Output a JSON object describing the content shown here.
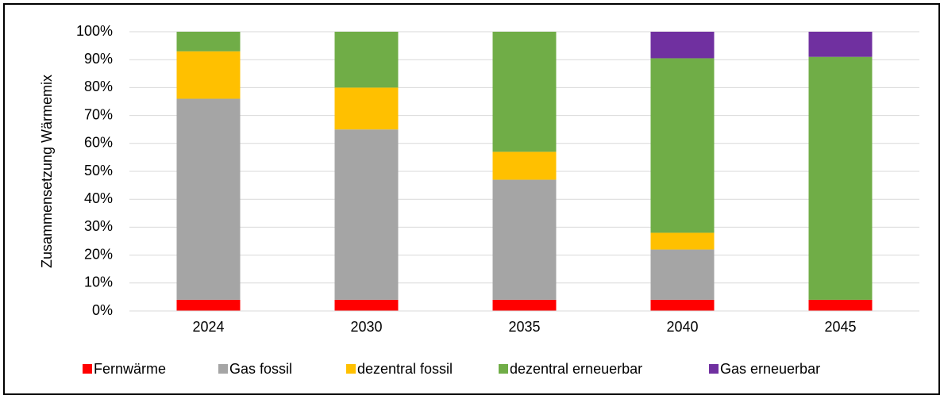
{
  "chart_data": {
    "type": "stacked_bar",
    "y_label": "Zusammensetzung Wärmemix",
    "categories": [
      "2024",
      "2030",
      "2035",
      "2040",
      "2045"
    ],
    "series": [
      {
        "name": "Fernwärme",
        "color": "#ff0000",
        "values": [
          4,
          4,
          4,
          4,
          4
        ]
      },
      {
        "name": "Gas fossil",
        "color": "#a5a5a5",
        "values": [
          72,
          61,
          43,
          18,
          0
        ]
      },
      {
        "name": "dezentral fossil",
        "color": "#ffc000",
        "values": [
          17,
          15,
          10,
          6,
          0
        ]
      },
      {
        "name": "dezentral erneuerbar",
        "color": "#70ad47",
        "values": [
          7,
          20,
          43,
          62.5,
          87
        ]
      },
      {
        "name": "Gas erneuerbar",
        "color": "#7030a0",
        "values": [
          0,
          0,
          0,
          9.5,
          9
        ]
      }
    ],
    "ylim": [
      0,
      100
    ],
    "yticks": [
      {
        "value": 0,
        "label": "0%"
      },
      {
        "value": 10,
        "label": "10%"
      },
      {
        "value": 20,
        "label": "20%"
      },
      {
        "value": 30,
        "label": "30%"
      },
      {
        "value": 40,
        "label": "40%"
      },
      {
        "value": 50,
        "label": "50%"
      },
      {
        "value": 60,
        "label": "60%"
      },
      {
        "value": 70,
        "label": "70%"
      },
      {
        "value": 80,
        "label": "80%"
      },
      {
        "value": 90,
        "label": "90%"
      },
      {
        "value": 100,
        "label": "100%"
      }
    ],
    "grid": true,
    "legend": "bottom"
  }
}
